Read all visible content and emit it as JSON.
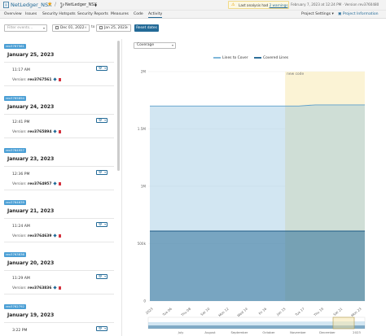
{
  "header": {
    "project_name": "NetLedger_NSX",
    "branch_name": "NetLedger_NSX",
    "warning": {
      "prefix": "Last analysis had",
      "link": "2 warnings"
    },
    "analysis_meta": "February 7, 2023 at 12:24 PM · Version rev3760480"
  },
  "nav": {
    "items": [
      "Overview",
      "Issues",
      "Security Hotspots",
      "Security Reports",
      "Measures",
      "Code",
      "Activity"
    ],
    "active": "Activity",
    "project_settings": "Project Settings",
    "project_information": "Project Information"
  },
  "filters": {
    "events_placeholder": "Filter events...",
    "from_date": "Dec 01, 2022",
    "to_label": "to",
    "to_date": "Jan 25, 2023",
    "reset_label": "Reset dates"
  },
  "activity": [
    {
      "badge": "rev3767561",
      "date": "January 25, 2023",
      "time": "11:17 AM",
      "version_label": "Version:",
      "version": "rev3767561"
    },
    {
      "badge": "rev3765894",
      "date": "January 24, 2023",
      "time": "12:41 PM",
      "version_label": "Version:",
      "version": "rev3765894"
    },
    {
      "badge": "rev3764957",
      "date": "January 23, 2023",
      "time": "12:36 PM",
      "version_label": "Version:",
      "version": "rev3764957"
    },
    {
      "badge": "rev3764639",
      "date": "January 21, 2023",
      "time": "11:24 AM",
      "version_label": "Version:",
      "version": "rev3764639"
    },
    {
      "badge": "rev3763836",
      "date": "January 20, 2023",
      "time": "11:29 AM",
      "version_label": "Version:",
      "version": "rev3763836"
    },
    {
      "badge": "rev3762792",
      "date": "January 19, 2023",
      "time": "3:22 PM",
      "version_label": "",
      "version": ""
    }
  ],
  "graph": {
    "selected": "Coverage"
  },
  "colors": {
    "accent": "#236a97",
    "badge": "#4b9fd5",
    "lines_to_cover": "#7fb7d9",
    "covered_lines": "#2e6f99",
    "new_code_bg": "#fbf3d5"
  },
  "chart_data": {
    "type": "area",
    "series": [
      {
        "name": "Lines to Cover",
        "y": [
          1700000,
          1700000,
          1700000,
          1700000,
          1700000,
          1700000,
          1700000,
          1700000,
          1700000,
          1700000,
          1710000,
          1710000,
          1710000,
          1710000
        ]
      },
      {
        "name": "Covered Lines",
        "y": [
          610000,
          610000,
          610000,
          610000,
          610000,
          610000,
          610000,
          610000,
          610000,
          610000,
          610000,
          610000,
          610000,
          610000
        ]
      }
    ],
    "x": [
      "2022",
      "Tue 06",
      "Thu 08",
      "Sat 10",
      "Mon 12",
      "Wed 14",
      "Fri 16",
      "2023",
      "Tue 17",
      "Thu 19",
      "Sat 21",
      "Mon 23",
      "",
      ""
    ],
    "x_ticks": [
      "2023",
      "Tue 06",
      "Thu 08",
      "Sat 10",
      "Mon 12",
      "Wed 14",
      "Fri 16",
      "Jan 15",
      "Tue 17",
      "Thu 19",
      "Sat 21",
      "Mon 23"
    ],
    "y_ticks": [
      "2M",
      "1.5M",
      "1M",
      "500k",
      "0"
    ],
    "ylim": [
      0,
      2000000
    ],
    "legend": [
      "Lines to Cover",
      "Covered Lines"
    ],
    "annotation": "new code",
    "overview_ticks": [
      "July",
      "August",
      "September",
      "October",
      "November",
      "December",
      "2023"
    ]
  }
}
